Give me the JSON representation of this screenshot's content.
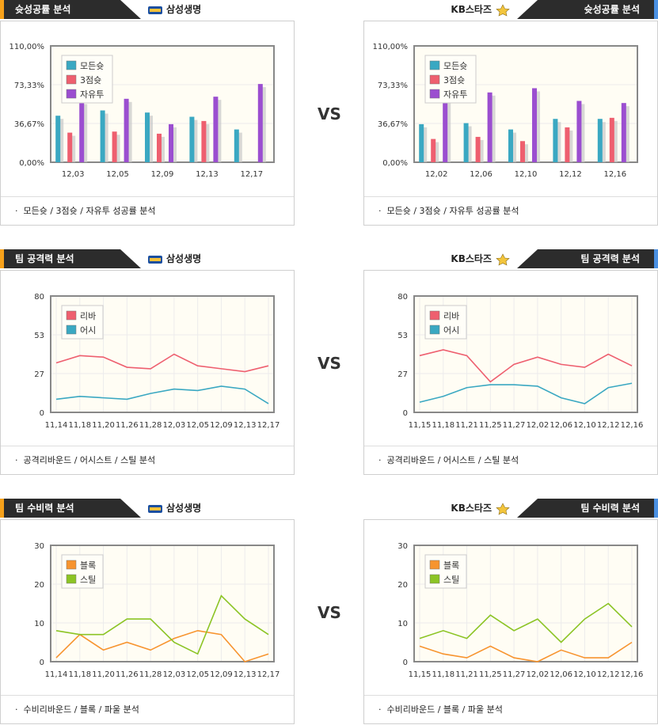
{
  "sections": [
    {
      "title": "슛성공률 분석",
      "left_team": "삼성생명",
      "right_team": "KB스타즈",
      "vs": "VS",
      "left_footer": "모든슛 / 3점슛 / 자유투 성공률 분석",
      "right_footer": "모든슛 / 3점슛 / 자유투 성공률 분석"
    },
    {
      "title": "팀 공격력 분석",
      "left_team": "삼성생명",
      "right_team": "KB스타즈",
      "vs": "VS",
      "left_footer": "공격리바운드 / 어시스트 / 스틸 분석",
      "right_footer": "공격리바운드 / 어시스트 / 스틸 분석"
    },
    {
      "title": "팀 수비력 분석",
      "left_team": "삼성생명",
      "right_team": "KB스타즈",
      "vs": "VS",
      "left_footer": "수비리바운드 / 블록 / 파울 분석",
      "right_footer": "수비리바운드 / 블록 / 파울 분석"
    }
  ],
  "colors": {
    "teal": "#3aa8c2",
    "red": "#ee5f6f",
    "purple": "#9b4ed0",
    "orange": "#f7942f",
    "green": "#8cc425",
    "header": "#2c2c2c"
  },
  "chart_data": [
    {
      "type": "bar",
      "ylim": [
        0,
        110
      ],
      "yticks": [
        "0,00%",
        "36,67%",
        "73,33%",
        "110,00%"
      ],
      "categories": [
        "12,03",
        "12,05",
        "12,09",
        "12,13",
        "12,17"
      ],
      "series": [
        {
          "name": "모든슛",
          "values": [
            44,
            49,
            47,
            43,
            31
          ]
        },
        {
          "name": "3점슛",
          "values": [
            28,
            29,
            27,
            39,
            0
          ]
        },
        {
          "name": "자유투",
          "values": [
            58,
            60,
            36,
            62,
            74
          ]
        }
      ]
    },
    {
      "type": "bar",
      "ylim": [
        0,
        110
      ],
      "yticks": [
        "0,00%",
        "36,67%",
        "73,33%",
        "110,00%"
      ],
      "categories": [
        "12,02",
        "12,06",
        "12,10",
        "12,12",
        "12,16"
      ],
      "series": [
        {
          "name": "모든슛",
          "values": [
            36,
            37,
            31,
            41,
            41
          ]
        },
        {
          "name": "3점슛",
          "values": [
            22,
            24,
            20,
            33,
            42
          ]
        },
        {
          "name": "자유투",
          "values": [
            60,
            66,
            70,
            58,
            56
          ]
        }
      ]
    },
    {
      "type": "line",
      "ylim": [
        0,
        80
      ],
      "yticks": [
        "0",
        "27",
        "53",
        "80"
      ],
      "categories": [
        "11,14",
        "11,18",
        "11,20",
        "11,26",
        "11,28",
        "12,03",
        "12,05",
        "12,09",
        "12,13",
        "12,17"
      ],
      "series": [
        {
          "name": "리바",
          "values": [
            34,
            39,
            38,
            31,
            30,
            40,
            32,
            30,
            28,
            32
          ]
        },
        {
          "name": "어시",
          "values": [
            9,
            11,
            10,
            9,
            13,
            16,
            15,
            18,
            16,
            6
          ]
        }
      ]
    },
    {
      "type": "line",
      "ylim": [
        0,
        80
      ],
      "yticks": [
        "0",
        "27",
        "53",
        "80"
      ],
      "categories": [
        "11,15",
        "11,18",
        "11,21",
        "11,25",
        "11,27",
        "12,02",
        "12,06",
        "12,10",
        "12,12",
        "12,16"
      ],
      "series": [
        {
          "name": "리바",
          "values": [
            39,
            43,
            39,
            21,
            33,
            38,
            33,
            31,
            40,
            32
          ]
        },
        {
          "name": "어시",
          "values": [
            7,
            11,
            17,
            19,
            19,
            18,
            10,
            6,
            17,
            20
          ]
        }
      ]
    },
    {
      "type": "line",
      "ylim": [
        0,
        30
      ],
      "yticks": [
        "0",
        "10",
        "20",
        "30"
      ],
      "categories": [
        "11,14",
        "11,18",
        "11,20",
        "11,26",
        "11,28",
        "12,03",
        "12,05",
        "12,09",
        "12,13",
        "12,17"
      ],
      "series": [
        {
          "name": "블록",
          "values": [
            1,
            7,
            3,
            5,
            3,
            6,
            8,
            7,
            0,
            2
          ]
        },
        {
          "name": "스틸",
          "values": [
            8,
            7,
            7,
            11,
            11,
            5,
            2,
            17,
            11,
            7
          ]
        }
      ]
    },
    {
      "type": "line",
      "ylim": [
        0,
        30
      ],
      "yticks": [
        "0",
        "10",
        "20",
        "30"
      ],
      "categories": [
        "11,15",
        "11,18",
        "11,21",
        "11,25",
        "11,27",
        "12,02",
        "12,06",
        "12,10",
        "12,12",
        "12,16"
      ],
      "series": [
        {
          "name": "블록",
          "values": [
            4,
            2,
            1,
            4,
            1,
            0,
            3,
            1,
            1,
            5
          ]
        },
        {
          "name": "스틸",
          "values": [
            6,
            8,
            6,
            12,
            8,
            11,
            5,
            11,
            15,
            9
          ]
        }
      ]
    }
  ]
}
